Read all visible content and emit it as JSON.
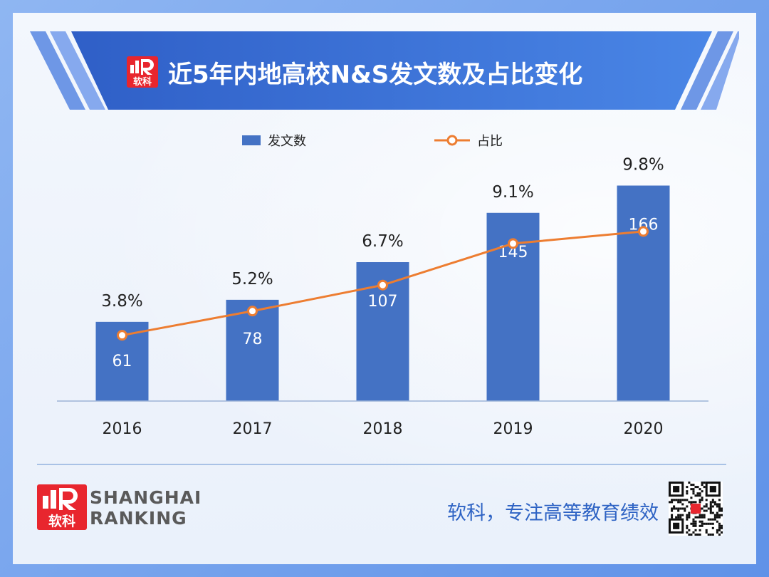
{
  "header": {
    "title": "近5年内地高校N&S发文数及占比变化",
    "logo_text": "软科"
  },
  "chart_data": {
    "type": "bar",
    "title": "近5年内地高校N&S发文数及占比变化",
    "categories": [
      "2016",
      "2017",
      "2018",
      "2019",
      "2020"
    ],
    "series": [
      {
        "name": "发文数",
        "type": "bar",
        "values": [
          61,
          78,
          107,
          145,
          166
        ],
        "labels": [
          "61",
          "78",
          "107",
          "145",
          "166"
        ]
      },
      {
        "name": "占比",
        "type": "line",
        "values": [
          3.8,
          5.2,
          6.7,
          9.1,
          9.8
        ],
        "labels": [
          "3.8%",
          "5.2%",
          "6.7%",
          "9.1%",
          "9.8%"
        ]
      }
    ],
    "bar_ylim": [
      0,
      180
    ],
    "line_ylim": [
      0,
      13.5
    ],
    "xlabel": "",
    "ylabel": "",
    "legend_position": "top-center",
    "grid": false
  },
  "colors": {
    "bar": "#4472c4",
    "line": "#ed7d31",
    "banner": "#3f73d6",
    "slogan": "#2e63c4",
    "logo_red": "#e8262e"
  },
  "footer": {
    "brand_line1": "SHANGHAI",
    "brand_line2": "RANKING",
    "slogan": "软科，专注高等教育绩效",
    "logo_text": "软科"
  }
}
